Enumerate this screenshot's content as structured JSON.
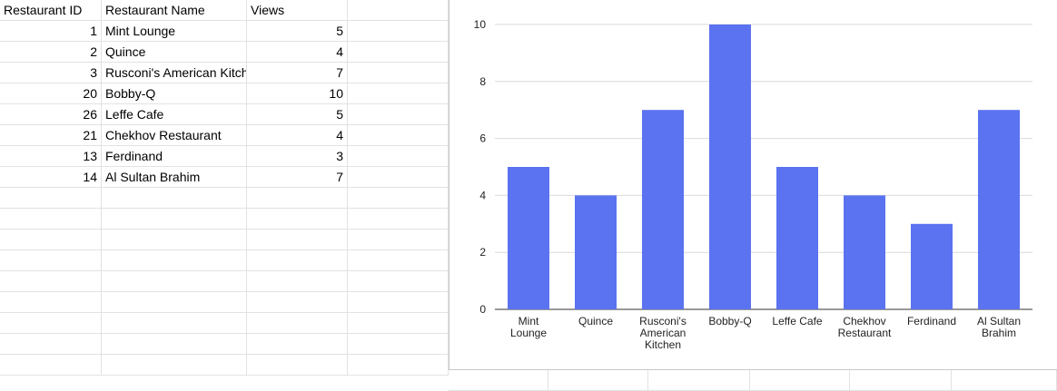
{
  "sheet": {
    "headers": [
      "Restaurant ID",
      "Restaurant Name",
      "Views"
    ],
    "rows": [
      {
        "id": "1",
        "name": "Mint Lounge",
        "views": "5"
      },
      {
        "id": "2",
        "name": "Quince",
        "views": "4"
      },
      {
        "id": "3",
        "name": "Rusconi's American Kitchen",
        "views": "7"
      },
      {
        "id": "20",
        "name": "Bobby-Q",
        "views": "10"
      },
      {
        "id": "26",
        "name": "Leffe Cafe",
        "views": "5"
      },
      {
        "id": "21",
        "name": "Chekhov Restaurant",
        "views": "4"
      },
      {
        "id": "13",
        "name": "Ferdinand",
        "views": "3"
      },
      {
        "id": "14",
        "name": "Al Sultan Brahim",
        "views": "7"
      }
    ]
  },
  "chart_data": {
    "type": "bar",
    "categories": [
      "Mint Lounge",
      "Quince",
      "Rusconi's American Kitchen",
      "Bobby-Q",
      "Leffe Cafe",
      "Chekhov Restaurant",
      "Ferdinand",
      "Al Sultan Brahim"
    ],
    "category_lines": [
      [
        "Mint",
        "Lounge"
      ],
      [
        "Quince"
      ],
      [
        "Rusconi's",
        "American",
        "Kitchen"
      ],
      [
        "Bobby-Q"
      ],
      [
        "Leffe Cafe"
      ],
      [
        "Chekhov",
        "Restaurant"
      ],
      [
        "Ferdinand"
      ],
      [
        "Al Sultan",
        "Brahim"
      ]
    ],
    "values": [
      5,
      4,
      7,
      10,
      5,
      4,
      3,
      7
    ],
    "yticks": [
      0,
      2,
      4,
      6,
      8,
      10
    ],
    "ylim": [
      0,
      10
    ],
    "grid": true,
    "bar_color": "#5b73f0"
  }
}
